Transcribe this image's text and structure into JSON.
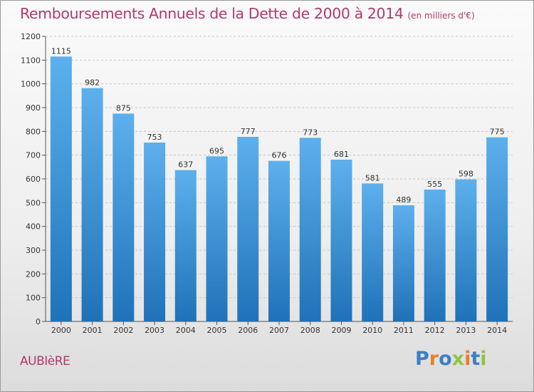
{
  "title": "Remboursements Annuels de la Dette de 2000 à 2014",
  "unit_note": "(en milliers d'€)",
  "city": "AUBIèRE",
  "logo": {
    "text": "Proxiti",
    "letters": [
      {
        "ch": "P",
        "color": "#3a7fc8"
      },
      {
        "ch": "r",
        "color": "#e8802a"
      },
      {
        "ch": "o",
        "color": "#3a7fc8"
      },
      {
        "ch": "x",
        "color": "#8cc63f"
      },
      {
        "ch": "i",
        "color": "#e8802a"
      },
      {
        "ch": "t",
        "color": "#3a7fc8"
      },
      {
        "ch": "i",
        "color": "#8cc63f"
      }
    ]
  },
  "colors": {
    "bar_light": "#5db0ec",
    "bar_dark": "#1f72b8",
    "title": "#b03a6a",
    "grid": "#c8c8c8"
  },
  "chart_data": {
    "type": "bar",
    "categories": [
      "2000",
      "2001",
      "2002",
      "2003",
      "2004",
      "2005",
      "2006",
      "2007",
      "2008",
      "2009",
      "2010",
      "2011",
      "2012",
      "2013",
      "2014"
    ],
    "values": [
      1115,
      982,
      875,
      753,
      637,
      695,
      777,
      676,
      773,
      681,
      581,
      489,
      555,
      598,
      775
    ],
    "yticks": [
      0,
      100,
      200,
      300,
      400,
      500,
      600,
      700,
      800,
      900,
      1000,
      1100,
      1200
    ],
    "ylim": [
      0,
      1200
    ],
    "grid": true,
    "data_labels": true
  }
}
